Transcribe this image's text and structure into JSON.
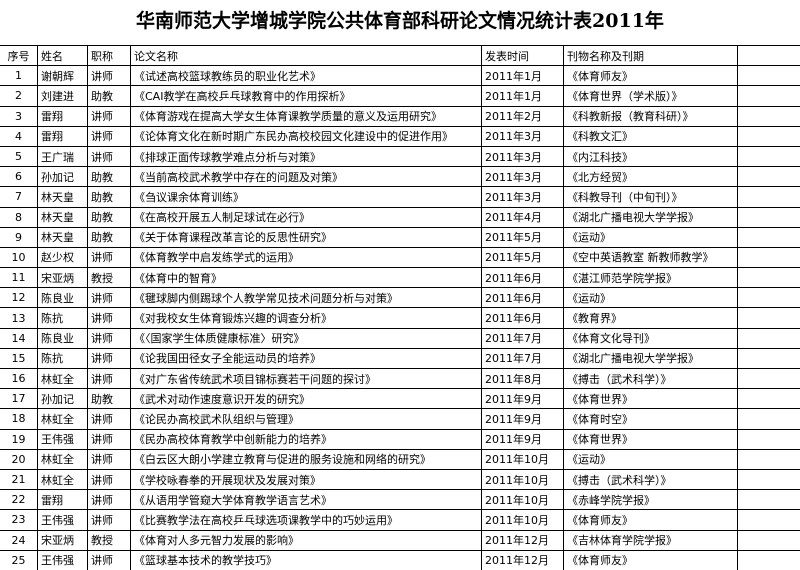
{
  "title": "华南师范大学增城学院公共体育部科研论文情况统计表2011年",
  "table": {
    "header": [
      "序号",
      "姓名",
      "职称",
      "论文名称",
      "发表时间",
      "刊物名称及刊期"
    ],
    "rows": [
      [
        1,
        "谢朝辉",
        "讲师",
        "《试述高校篮球教练员的职业化艺术》",
        "2011年1月",
        "《体育师友》"
      ],
      [
        2,
        "刘建进",
        "助教",
        "《CAI教学在高校乒乓球教育中的作用探析》",
        "2011年1月",
        "《体育世界（学术版）》"
      ],
      [
        3,
        "雷翔",
        "讲师",
        "《体育游戏在提高大学女生体育课教学质量的意义及运用研究》",
        "2011年2月",
        "《科教新报（教育科研）》"
      ],
      [
        4,
        "雷翔",
        "讲师",
        "《论体育文化在新时期广东民办高校校园文化建设中的促进作用》",
        "2011年3月",
        "《科教文汇》"
      ],
      [
        5,
        "王广瑞",
        "讲师",
        "《排球正面传球教学难点分析与对策》",
        "2011年3月",
        "《内江科技》"
      ],
      [
        6,
        "孙加记",
        "助教",
        "《当前高校武术教学中存在的问题及对策》",
        "2011年3月",
        "《北方经贸》"
      ],
      [
        7,
        "林天皇",
        "助教",
        "《刍议课余体育训练》",
        "2011年3月",
        "《科教导刊（中旬刊）》"
      ],
      [
        8,
        "林天皇",
        "助教",
        "《在高校开展五人制足球试在必行》",
        "2011年4月",
        "《湖北广播电视大学学报》"
      ],
      [
        9,
        "林天皇",
        "助教",
        "《关于体育课程改革言论的反思性研究》",
        "2011年5月",
        "《运动》"
      ],
      [
        10,
        "赵少权",
        "讲师",
        "《体育教学中启发练学式的运用》",
        "2011年5月",
        "《空中英语教室 新教师教学》"
      ],
      [
        11,
        "宋亚炳",
        "教授",
        "《体育中的智育》",
        "2011年6月",
        "《湛江师范学院学报》"
      ],
      [
        12,
        "陈良业",
        "讲师",
        "《毽球脚内侧踢球个人教学常见技术问题分析与对策》",
        "2011年6月",
        "《运动》"
      ],
      [
        13,
        "陈抗",
        "讲师",
        "《对我校女生体育锻炼兴趣的调查分析》",
        "2011年6月",
        "《教育界》"
      ],
      [
        14,
        "陈良业",
        "讲师",
        "《〈国家学生体质健康标准〉研究》",
        "2011年7月",
        "《体育文化导刊》"
      ],
      [
        15,
        "陈抗",
        "讲师",
        "《论我国田径女子全能运动员的培养》",
        "2011年7月",
        "《湖北广播电视大学学报》"
      ],
      [
        16,
        "林虹全",
        "讲师",
        "《对广东省传统武术项目锦标赛若干问题的探讨》",
        "2011年8月",
        "《搏击（武术科学）》"
      ],
      [
        17,
        "孙加记",
        "助教",
        "《武术对动作速度意识开发的研究》",
        "2011年9月",
        "《体育世界》"
      ],
      [
        18,
        "林虹全",
        "讲师",
        "《论民办高校武术队组织与管理》",
        "2011年9月",
        "《体育时空》"
      ],
      [
        19,
        "王伟强",
        "讲师",
        "《民办高校体育教学中创新能力的培养》",
        "2011年9月",
        "《体育世界》"
      ],
      [
        20,
        "林虹全",
        "讲师",
        "《白云区大朗小学建立教育与促进的服务设施和网络的研究》",
        "2011年10月",
        "《运动》"
      ],
      [
        21,
        "林虹全",
        "讲师",
        "《学校咏春拳的开展现状及发展对策》",
        "2011年10月",
        "《搏击（武术科学）》"
      ],
      [
        22,
        "雷翔",
        "讲师",
        "《从语用学管窥大学体育教学语言艺术》",
        "2011年10月",
        "《赤峰学院学报》"
      ],
      [
        23,
        "王伟强",
        "讲师",
        "《比赛教学法在高校乒乓球选项课教学中的巧妙运用》",
        "2011年10月",
        "《体育师友》"
      ],
      [
        24,
        "宋亚炳",
        "教授",
        "《体育对人多元智力发展的影响》",
        "2011年12月",
        "《吉林体育学院学报》"
      ],
      [
        25,
        "王伟强",
        "讲师",
        "《篮球基本技术的教学技巧》",
        "2011年12月",
        "《体育师友》"
      ]
    ]
  }
}
